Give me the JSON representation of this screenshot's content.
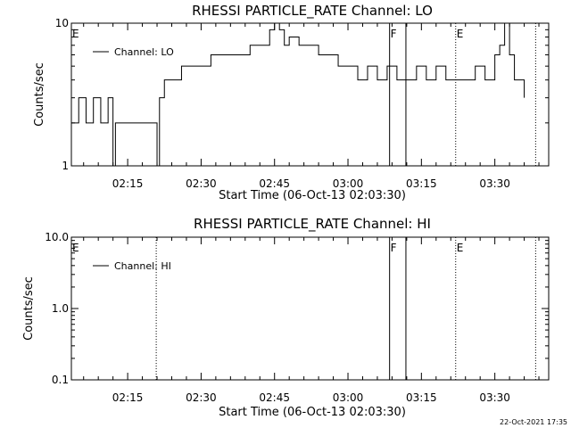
{
  "chart_data": [
    {
      "type": "line",
      "title": "RHESSI PARTICLE_RATE Channel: LO",
      "xlabel": "Start Time (06-Oct-13 02:03:30)",
      "ylabel": "Counts/sec",
      "yscale": "log",
      "ylim": [
        1,
        10
      ],
      "xlim": [
        "02:03:30",
        "03:41:00"
      ],
      "yticks": [
        1,
        10
      ],
      "ytick_labels": [
        "1",
        "10"
      ],
      "xticks": [
        "02:15",
        "02:30",
        "02:45",
        "03:00",
        "03:15",
        "03:30"
      ],
      "legend": {
        "placement": "top-left",
        "entries": [
          "Channel: LO"
        ]
      },
      "flags": [
        {
          "label": "E",
          "time": "02:03:30",
          "style": "none"
        },
        {
          "label": "F",
          "time": "03:08:30",
          "style": "solid"
        },
        {
          "label": "",
          "time": "03:11:50",
          "style": "solid"
        },
        {
          "label": "E",
          "time": "03:22:00",
          "style": "dotted"
        },
        {
          "label": "",
          "time": "03:38:20",
          "style": "dotted"
        }
      ],
      "series": [
        {
          "x": [
            "02:03:30",
            "02:05:00",
            "02:06:30",
            "02:08:00",
            "02:09:30",
            "02:11:00",
            "02:12:00",
            "02:12:30",
            "02:14:00",
            "02:16:00",
            "02:18:00",
            "02:20:00",
            "02:21:00",
            "02:21:30",
            "02:22:30",
            "02:24:00",
            "02:26:00",
            "02:28:00",
            "02:30:00",
            "02:32:00",
            "02:34:00",
            "02:36:00",
            "02:38:00",
            "02:40:00",
            "02:42:00",
            "02:44:00",
            "02:45:00",
            "02:46:00",
            "02:47:00",
            "02:48:00",
            "02:50:00",
            "02:52:00",
            "02:54:00",
            "02:56:00",
            "02:58:00",
            "03:00:00",
            "03:02:00",
            "03:04:00",
            "03:06:00",
            "03:08:00",
            "03:10:00",
            "03:12:00",
            "03:14:00",
            "03:16:00",
            "03:18:00",
            "03:20:00",
            "03:22:00",
            "03:24:00",
            "03:26:00",
            "03:28:00",
            "03:29:00",
            "03:30:00",
            "03:31:00",
            "03:32:00",
            "03:33:00",
            "03:34:00",
            "03:36:00"
          ],
          "values": [
            2,
            3,
            2,
            3,
            2,
            3,
            1,
            2,
            2,
            2,
            2,
            2,
            1,
            3,
            4,
            4,
            5,
            5,
            5,
            6,
            6,
            6,
            6,
            7,
            7,
            9,
            10,
            9,
            7,
            8,
            7,
            7,
            6,
            6,
            5,
            5,
            4,
            5,
            4,
            5,
            4,
            4,
            5,
            4,
            5,
            4,
            4,
            4,
            5,
            4,
            4,
            6,
            7,
            10,
            6,
            4,
            3
          ]
        }
      ]
    },
    {
      "type": "line",
      "title": "RHESSI PARTICLE_RATE Channel: HI",
      "xlabel": "Start Time (06-Oct-13 02:03:30)",
      "ylabel": "Counts/sec",
      "yscale": "log",
      "ylim": [
        0.1,
        10
      ],
      "xlim": [
        "02:03:30",
        "03:41:00"
      ],
      "yticks": [
        0.1,
        1,
        10
      ],
      "ytick_labels": [
        "0.1",
        "1.0",
        "10.0"
      ],
      "xticks": [
        "02:15",
        "02:30",
        "02:45",
        "03:00",
        "03:15",
        "03:30"
      ],
      "legend": {
        "placement": "top-left",
        "entries": [
          "Channel: HI"
        ]
      },
      "flags": [
        {
          "label": "E",
          "time": "02:03:30",
          "style": "none"
        },
        {
          "label": "",
          "time": "02:20:50",
          "style": "dotted"
        },
        {
          "label": "F",
          "time": "03:08:30",
          "style": "solid"
        },
        {
          "label": "",
          "time": "03:11:50",
          "style": "solid"
        },
        {
          "label": "E",
          "time": "03:22:00",
          "style": "dotted"
        },
        {
          "label": "",
          "time": "03:38:20",
          "style": "dotted"
        }
      ],
      "series": [
        {
          "x": [],
          "values": []
        }
      ]
    }
  ],
  "footer": {
    "timestamp": "22-Oct-2021 17:35"
  }
}
